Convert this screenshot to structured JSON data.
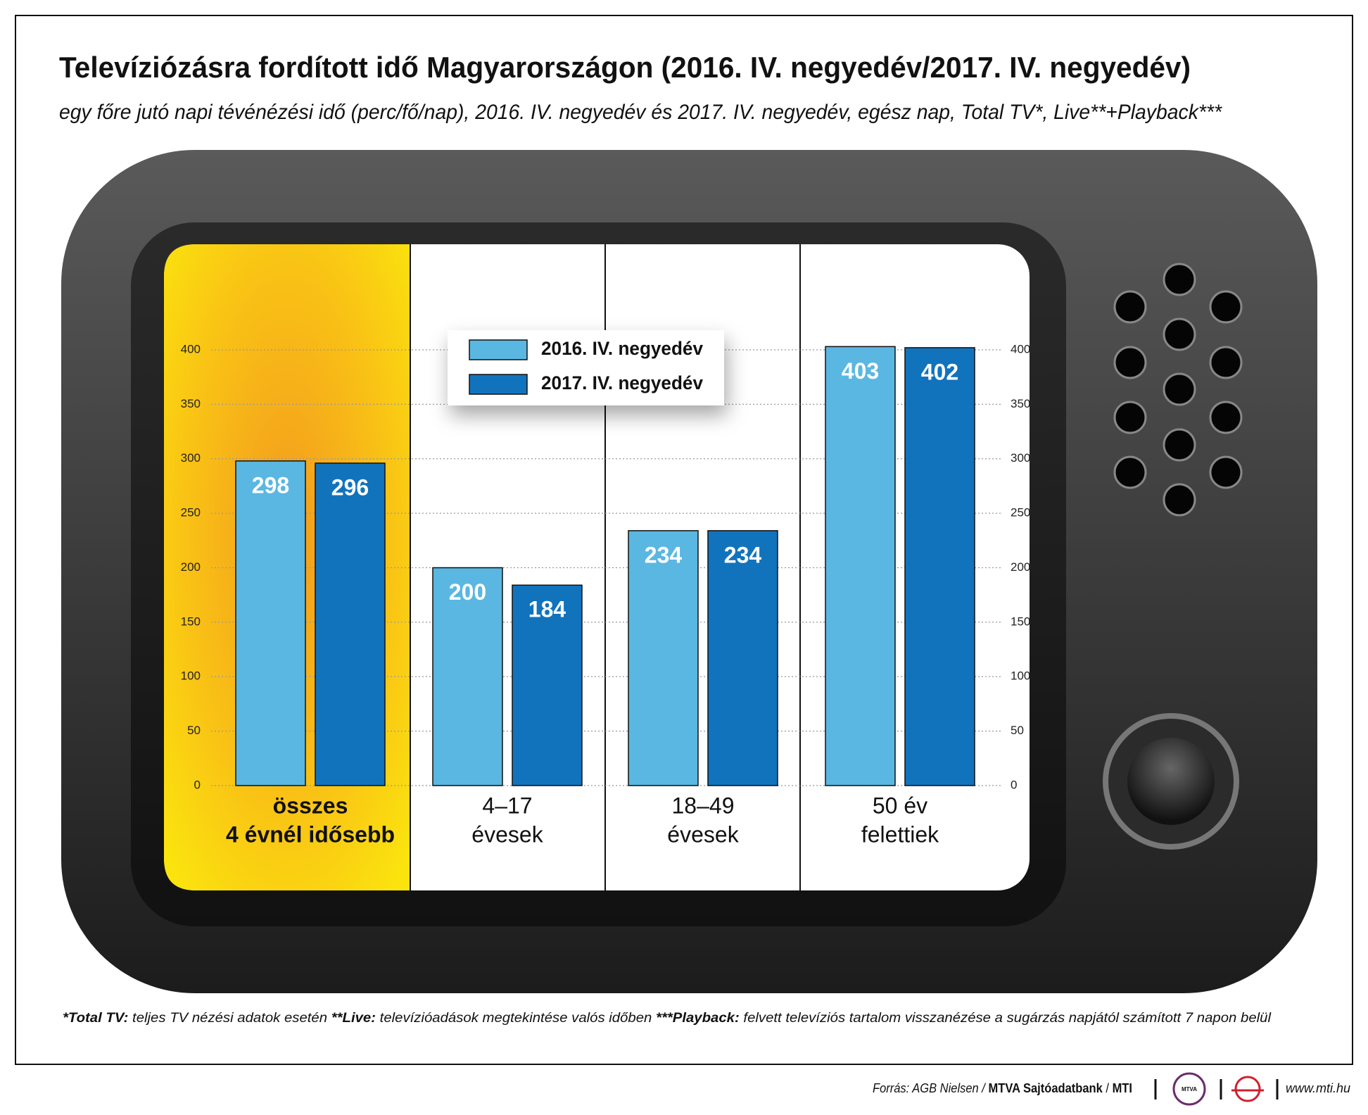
{
  "title": "Televíziózásra fordított idő Magyarországon (2016. IV. negyedév/2017. IV. negyedév)",
  "subtitle": "egy főre jutó napi tévénézési idő (perc/fő/nap), 2016. IV. negyedév és 2017. IV. negyedév, egész nap, Total TV*, Live**+Playback***",
  "chart_data": {
    "type": "bar",
    "categories": [
      [
        "összes",
        "4 évnél idősebb"
      ],
      [
        "4–17",
        "évesek"
      ],
      [
        "18–49",
        "évesek"
      ],
      [
        "50 év",
        "felettiek"
      ]
    ],
    "series": [
      {
        "name": "2016. IV. negyedév",
        "color": "#5ab7e1",
        "values": [
          298,
          200,
          234,
          403
        ]
      },
      {
        "name": "2017. IV. negyedév",
        "color": "#1273bd",
        "values": [
          296,
          184,
          234,
          402
        ]
      }
    ],
    "ylim": [
      0,
      400
    ],
    "yticks": [
      0,
      50,
      100,
      150,
      200,
      250,
      300,
      350,
      400
    ],
    "grid": true
  },
  "footnotes": [
    {
      "term": "*Total TV:",
      "text": " teljes TV nézési adatok esetén"
    },
    {
      "term": "**Live:",
      "text": " televízióadások megtekintése valós időben"
    },
    {
      "term": "***Playback:",
      "text": " felvett televíziós tartalom visszanézése a sugárzás napjától számított 7 napon belül"
    }
  ],
  "source": {
    "prefix": "Forrás: AGB Nielsen /",
    "bold1": "MTVA Sajtóadatbank",
    "bold2": "MTI",
    "logo": "MTVA",
    "url": "www.mti.hu"
  }
}
